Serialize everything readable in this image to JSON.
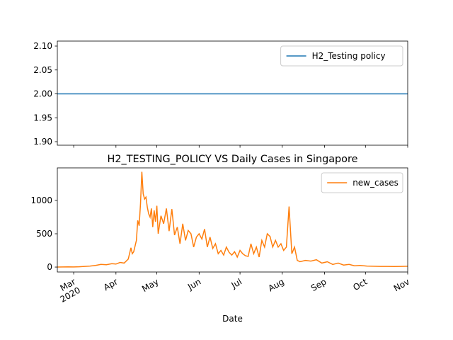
{
  "chart_data": [
    {
      "type": "line",
      "x": [
        -12,
        245
      ],
      "series": [
        {
          "name": "H2_Testing policy",
          "color": "#1f77b4",
          "values": [
            2,
            2
          ]
        }
      ],
      "xlim": [
        -12,
        245
      ],
      "ylim": [
        1.8926,
        2.1104
      ],
      "yticks": [
        {
          "value": 1.9,
          "label": "1.90"
        },
        1.95,
        {
          "value": 2,
          "label": "2.00"
        },
        2.05,
        {
          "value": 2.1,
          "label": "2.10"
        }
      ],
      "legend": "upper right"
    },
    {
      "type": "line",
      "title": "H2_TESTING_POLICY VS Daily Cases in Singapore",
      "xlabel": "Date",
      "x": [
        -12,
        -8,
        -4,
        0,
        4,
        8,
        12,
        16,
        20,
        24,
        28,
        31,
        34,
        37,
        40,
        42,
        43,
        44,
        46,
        47,
        48,
        49,
        50,
        51,
        52,
        53,
        54,
        55,
        56,
        57,
        58,
        59,
        60,
        61,
        62,
        64,
        66,
        68,
        70,
        72,
        74,
        76,
        78,
        80,
        82,
        84,
        86,
        88,
        90,
        92,
        94,
        96,
        98,
        100,
        102,
        104,
        106,
        108,
        110,
        112,
        114,
        116,
        118,
        120,
        122,
        124,
        126,
        128,
        130,
        132,
        134,
        136,
        138,
        140,
        142,
        144,
        146,
        148,
        150,
        152,
        154,
        156,
        158,
        160,
        162,
        164,
        166,
        170,
        174,
        178,
        182,
        186,
        190,
        194,
        198,
        202,
        206,
        210,
        215,
        220,
        225,
        230,
        235,
        240,
        245
      ],
      "series": [
        {
          "name": "new_cases",
          "color": "#ff7f0e",
          "values": [
            0,
            2,
            3,
            2,
            5,
            10,
            15,
            25,
            40,
            35,
            50,
            45,
            70,
            60,
            120,
            290,
            200,
            230,
            400,
            700,
            620,
            950,
            1430,
            1100,
            1020,
            1050,
            900,
            800,
            750,
            880,
            600,
            850,
            680,
            920,
            500,
            770,
            650,
            880,
            540,
            870,
            480,
            600,
            350,
            650,
            400,
            550,
            500,
            300,
            450,
            500,
            420,
            570,
            300,
            450,
            280,
            350,
            200,
            250,
            180,
            300,
            220,
            180,
            230,
            150,
            250,
            200,
            170,
            160,
            350,
            200,
            300,
            150,
            400,
            300,
            500,
            460,
            300,
            400,
            300,
            350,
            250,
            300,
            908,
            200,
            300,
            100,
            80,
            100,
            90,
            110,
            60,
            80,
            40,
            60,
            30,
            40,
            20,
            25,
            15,
            12,
            10,
            10,
            8,
            10,
            12
          ]
        }
      ],
      "xlim": [
        -12,
        245
      ],
      "xticks": [
        {
          "value": 0,
          "label": "Mar\n2020"
        },
        {
          "value": 31,
          "label": "Apr"
        },
        {
          "value": 61,
          "label": "May"
        },
        {
          "value": 92,
          "label": "Jun"
        },
        {
          "value": 122,
          "label": "Jul"
        },
        {
          "value": 153,
          "label": "Aug"
        },
        {
          "value": 184,
          "label": "Sep"
        },
        {
          "value": 214,
          "label": "Oct"
        },
        {
          "value": 245,
          "label": "Nov"
        }
      ],
      "ylim": [
        -74,
        1489
      ],
      "yticks": [
        0,
        500,
        1000
      ],
      "legend": "upper right"
    }
  ]
}
